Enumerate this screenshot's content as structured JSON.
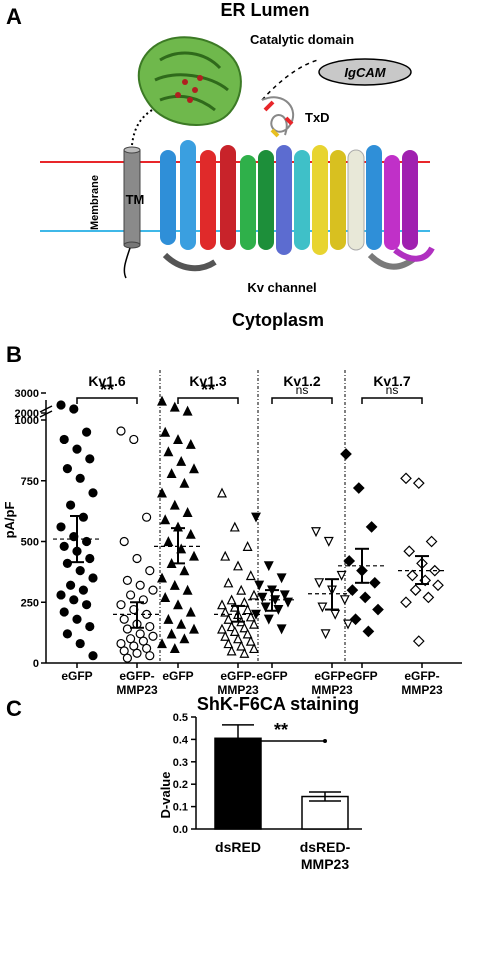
{
  "panel_a": {
    "label": "A",
    "top_label": "ER Lumen",
    "bottom_label": "Cytoplasm",
    "membrane_label": "Membrane",
    "tm_label": "TM",
    "catalytic_label": "Catalytic domain",
    "igcam_label": "IgCAM",
    "txd_label": "TxD",
    "kv_label": "Kv channel",
    "colors": {
      "membrane_top": "#e8262a",
      "membrane_bottom": "#3fb8e8",
      "catalytic": "#5aa53a"
    }
  },
  "panel_b": {
    "label": "B"
  },
  "panel_c": {
    "label": "C"
  },
  "chart_data": [
    {
      "type": "scatter",
      "ylabel": "pA/pF",
      "y_ticks": [
        "0",
        "250",
        "500",
        "750",
        "1000",
        "2000",
        "3000"
      ],
      "y_axis_break": true,
      "groups": [
        {
          "name": "Kv1.6",
          "significance": "**",
          "categories": [
            {
              "label": "eGFP",
              "marker": "filled-circle",
              "mean": 510,
              "sem_low": 415,
              "sem_high": 605,
              "values": [
                2400,
                2200,
                950,
                920,
                880,
                840,
                800,
                760,
                700,
                650,
                600,
                560,
                520,
                500,
                480,
                460,
                430,
                410,
                380,
                350,
                320,
                300,
                280,
                260,
                240,
                210,
                180,
                150,
                120,
                80,
                30
              ]
            },
            {
              "label": "eGFP-MMP23",
              "marker": "open-circle",
              "mean": 200,
              "sem_low": 145,
              "sem_high": 250,
              "values": [
                1100,
                920,
                600,
                500,
                430,
                380,
                340,
                320,
                300,
                280,
                260,
                240,
                220,
                200,
                180,
                160,
                150,
                140,
                120,
                110,
                100,
                90,
                80,
                70,
                60,
                50,
                40,
                30,
                20
              ]
            }
          ]
        },
        {
          "name": "Kv1.3",
          "significance": "**",
          "categories": [
            {
              "label": "eGFP",
              "marker": "filled-triangle",
              "mean": 480,
              "sem_low": 410,
              "sem_high": 555,
              "values": [
                2600,
                2300,
                2100,
                950,
                920,
                900,
                870,
                830,
                800,
                780,
                740,
                700,
                650,
                620,
                590,
                560,
                530,
                500,
                470,
                440,
                410,
                380,
                350,
                320,
                300,
                270,
                240,
                210,
                180,
                160,
                140,
                120,
                100,
                80,
                60
              ]
            },
            {
              "label": "eGFP-MMP23",
              "marker": "open-triangle",
              "mean": 200,
              "sem_low": 170,
              "sem_high": 235,
              "values": [
                700,
                560,
                480,
                440,
                400,
                360,
                330,
                300,
                280,
                260,
                250,
                240,
                230,
                220,
                210,
                200,
                190,
                180,
                170,
                160,
                150,
                145,
                140,
                130,
                120,
                110,
                100,
                90,
                80,
                70,
                60,
                50,
                40
              ]
            }
          ]
        },
        {
          "name": "Kv1.2",
          "significance": "ns",
          "categories": [
            {
              "label": "eGFP",
              "marker": "filled-down-triangle",
              "mean": 260,
              "sem_low": 215,
              "sem_high": 300,
              "values": [
                600,
                400,
                350,
                320,
                300,
                280,
                270,
                260,
                250,
                230,
                220,
                200,
                180,
                140
              ]
            },
            {
              "label": "eGFP-MMP23",
              "marker": "open-down-triangle",
              "mean": 285,
              "sem_low": 220,
              "sem_high": 345,
              "values": [
                540,
                500,
                360,
                330,
                300,
                260,
                230,
                200,
                160,
                120
              ]
            }
          ]
        },
        {
          "name": "Kv1.7",
          "significance": "ns",
          "categories": [
            {
              "label": "eGFP",
              "marker": "filled-diamond",
              "mean": 400,
              "sem_low": 330,
              "sem_high": 470,
              "values": [
                860,
                720,
                560,
                420,
                380,
                330,
                300,
                270,
                220,
                180,
                130
              ]
            },
            {
              "label": "eGFP-MMP23",
              "marker": "open-diamond",
              "mean": 380,
              "sem_low": 325,
              "sem_high": 440,
              "values": [
                760,
                740,
                500,
                460,
                410,
                380,
                360,
                340,
                320,
                300,
                270,
                250,
                90
              ]
            }
          ]
        }
      ]
    },
    {
      "type": "bar",
      "title": "ShK-F6CA staining",
      "ylabel": "D-value",
      "ylim": [
        0,
        0.5
      ],
      "y_ticks": [
        "0.0",
        "0.1",
        "0.2",
        "0.3",
        "0.4",
        "0.5"
      ],
      "categories": [
        "dsRED",
        "dsRED-MMP23"
      ],
      "values": [
        0.405,
        0.145
      ],
      "errors": [
        0.06,
        0.02
      ],
      "fills": [
        "#000000",
        "#ffffff"
      ],
      "significance": "**"
    }
  ]
}
